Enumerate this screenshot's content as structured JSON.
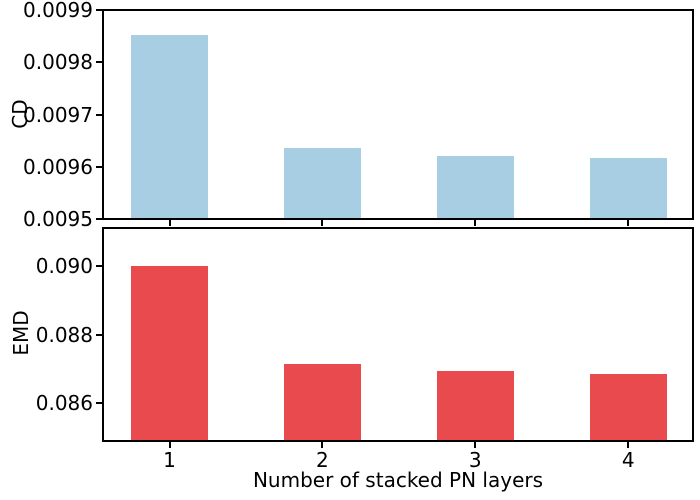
{
  "figure": {
    "background": "#ffffff",
    "text_color": "#000000",
    "spine_color": "#000000"
  },
  "chart_data": [
    {
      "type": "bar",
      "title": "",
      "ylabel": "CD",
      "xlabel": "",
      "categories": [
        "1",
        "2",
        "3",
        "4"
      ],
      "values": [
        0.009853,
        0.009636,
        0.009621,
        0.009617
      ],
      "ylim": [
        0.0095,
        0.0099
      ],
      "ytick_values": [
        0.0095,
        0.0096,
        0.0097,
        0.0098,
        0.0099
      ],
      "ytick_labels": [
        "0.0095",
        "0.0096",
        "0.0097",
        "0.0098",
        "0.0099"
      ],
      "x_tick_labels_visible": false,
      "grid": false,
      "legend": "none",
      "bar_color": "#a7cee2"
    },
    {
      "type": "bar",
      "title": "",
      "ylabel": "EMD",
      "xlabel": "Number of stacked PN layers",
      "categories": [
        "1",
        "2",
        "3",
        "4"
      ],
      "values": [
        0.09,
        0.08714,
        0.08693,
        0.08686
      ],
      "ylim": [
        0.0849,
        0.0911
      ],
      "ytick_values": [
        0.086,
        0.088,
        0.09
      ],
      "ytick_labels": [
        "0.086",
        "0.088",
        "0.090"
      ],
      "x_tick_labels_visible": true,
      "grid": false,
      "legend": "none",
      "bar_color": "#e84a4d"
    }
  ]
}
